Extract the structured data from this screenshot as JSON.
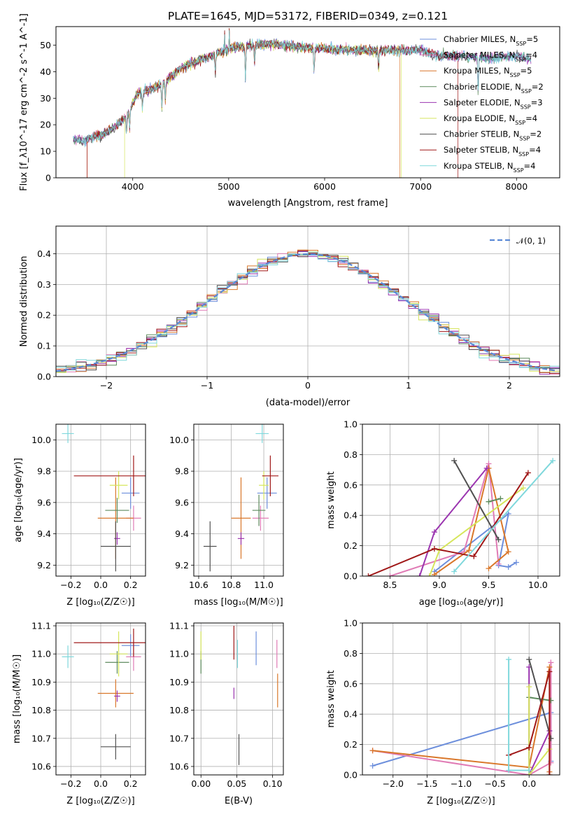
{
  "figure": {
    "title": "PLATE=1645, MJD=53172, FIBERID=0349, z=0.121"
  },
  "models": [
    {
      "name": "Chabrier MILES",
      "nssp": 5,
      "color": "#6d8fdc"
    },
    {
      "name": "Salpeter MILES",
      "nssp": 4,
      "color": "#e07bb5"
    },
    {
      "name": "Kroupa MILES",
      "nssp": 5,
      "color": "#d9772a"
    },
    {
      "name": "Chabrier ELODIE",
      "nssp": 2,
      "color": "#5c8a5c"
    },
    {
      "name": "Salpeter ELODIE",
      "nssp": 3,
      "color": "#9b35b0"
    },
    {
      "name": "Kroupa ELODIE",
      "nssp": 4,
      "color": "#d6e65c"
    },
    {
      "name": "Chabrier STELIB",
      "nssp": 2,
      "color": "#505050"
    },
    {
      "name": "Salpeter STELIB",
      "nssp": 4,
      "color": "#a01818"
    },
    {
      "name": "Kroupa STELIB",
      "nssp": 4,
      "color": "#7fd8dc"
    }
  ],
  "chart_data": [
    {
      "id": "spectrum",
      "type": "line",
      "xlabel": "wavelength [Angstrom, rest frame]",
      "ylabel": "Flux [f_λ10^-17 erg cm^-2 s^-1 A^-1]",
      "xlim": [
        3200,
        8450
      ],
      "ylim": [
        0,
        57
      ],
      "xticks": [
        4000,
        5000,
        6000,
        7000,
        8000
      ],
      "yticks": [
        0,
        10,
        20,
        30,
        40,
        50
      ],
      "legend": "upper right",
      "grid": false,
      "continuum": [
        [
          3380,
          14.5
        ],
        [
          3500,
          14
        ],
        [
          3600,
          15.5
        ],
        [
          3700,
          16.5
        ],
        [
          3800,
          19
        ],
        [
          3880,
          21
        ],
        [
          3950,
          24
        ],
        [
          4050,
          32
        ],
        [
          4150,
          33
        ],
        [
          4300,
          35
        ],
        [
          4450,
          40
        ],
        [
          4600,
          43
        ],
        [
          4750,
          45
        ],
        [
          4900,
          47
        ],
        [
          5050,
          49
        ],
        [
          5250,
          50
        ],
        [
          5500,
          50.5
        ],
        [
          5800,
          49
        ],
        [
          6100,
          48.5
        ],
        [
          6400,
          48
        ],
        [
          6700,
          48
        ],
        [
          7000,
          48
        ],
        [
          7200,
          46
        ],
        [
          7400,
          46
        ],
        [
          7700,
          45
        ],
        [
          8000,
          46
        ],
        [
          8150,
          44.5
        ]
      ],
      "absorption": [
        [
          3934,
          20,
          30
        ],
        [
          3968,
          22,
          30
        ],
        [
          4101,
          30,
          20
        ],
        [
          4304,
          31,
          25
        ],
        [
          4340,
          33,
          20
        ],
        [
          4861,
          38,
          15
        ],
        [
          5175,
          44,
          25
        ],
        [
          5270,
          46,
          15
        ],
        [
          5890,
          40,
          20
        ],
        [
          6563,
          43,
          15
        ],
        [
          7600,
          40,
          30
        ]
      ],
      "emission": [
        [
          4959,
          55,
          6
        ],
        [
          5007,
          57,
          6
        ]
      ],
      "series_cuts": [
        {
          "series": "Kroupa MILES",
          "x_start": 3525,
          "x_end": 6785
        },
        {
          "series": "Salpeter STELIB",
          "x_start": 3525,
          "x_end": 7390
        },
        {
          "series": "Kroupa ELODIE",
          "x_start": 3915,
          "x_end": 6800
        }
      ]
    },
    {
      "id": "residuals",
      "type": "histogram",
      "xlabel": "(data-model)/error",
      "ylabel": "Normed distribution",
      "xlim": [
        -2.5,
        2.5
      ],
      "ylim": [
        0,
        0.49
      ],
      "xticks": [
        -2,
        -1,
        0,
        1,
        2
      ],
      "yticks": [
        0,
        0.1,
        0.2,
        0.3,
        0.4
      ],
      "grid": true,
      "legend": "upper right",
      "reference_curve": {
        "label": "𝒩(0, 1)",
        "color": "#5b8ad6",
        "style": "dashed"
      }
    },
    {
      "id": "age-vs-Z",
      "type": "errorbar",
      "xlabel": "Z [log₁₀(Z/Z☉)]",
      "ylabel": "age  [log₁₀(age/yr)]",
      "xlim": [
        -0.3,
        0.3
      ],
      "ylim": [
        9.13,
        10.1
      ],
      "xticks": [
        -0.2,
        0.0,
        0.2
      ],
      "yticks": [
        9.2,
        9.4,
        9.6,
        9.8,
        10.0
      ],
      "grid": true,
      "points": [
        {
          "model": "Chabrier MILES",
          "x": 0.2,
          "xerr": 0.06,
          "y": 9.66,
          "yerr": 0.1
        },
        {
          "model": "Salpeter MILES",
          "x": 0.22,
          "xerr": 0.05,
          "y": 9.5,
          "yerr": 0.08
        },
        {
          "model": "Kroupa MILES",
          "x": 0.1,
          "xerr": 0.12,
          "y": 9.5,
          "yerr": 0.26
        },
        {
          "model": "Chabrier ELODIE",
          "x": 0.11,
          "xerr": 0.08,
          "y": 9.55,
          "yerr": 0.08
        },
        {
          "model": "Salpeter ELODIE",
          "x": 0.11,
          "xerr": 0.02,
          "y": 9.37,
          "yerr": 0.04
        },
        {
          "model": "Kroupa ELODIE",
          "x": 0.12,
          "xerr": 0.06,
          "y": 9.71,
          "yerr": 0.09
        },
        {
          "model": "Chabrier STELIB",
          "x": 0.1,
          "xerr": 0.1,
          "y": 9.32,
          "yerr": 0.16
        },
        {
          "model": "Salpeter STELIB",
          "x": 0.22,
          "xerr": 0.4,
          "y": 9.77,
          "yerr": 0.13
        },
        {
          "model": "Kroupa STELIB",
          "x": -0.22,
          "xerr": 0.04,
          "y": 10.04,
          "yerr": 0.06
        }
      ]
    },
    {
      "id": "age-vs-mass",
      "type": "errorbar",
      "xlabel": "mass [log₁₀(M/M☉)]",
      "ylabel": "",
      "xlim": [
        10.57,
        11.12
      ],
      "ylim": [
        9.13,
        10.1
      ],
      "xticks": [
        10.6,
        10.8,
        11.0
      ],
      "yticks": [
        9.2,
        9.4,
        9.6,
        9.8,
        10.0
      ],
      "grid": true,
      "points": [
        {
          "model": "Chabrier MILES",
          "x": 11.02,
          "xerr": 0.06,
          "y": 9.66,
          "yerr": 0.1
        },
        {
          "model": "Salpeter MILES",
          "x": 10.98,
          "xerr": 0.05,
          "y": 9.5,
          "yerr": 0.08
        },
        {
          "model": "Kroupa MILES",
          "x": 10.86,
          "xerr": 0.06,
          "y": 9.5,
          "yerr": 0.26
        },
        {
          "model": "Chabrier ELODIE",
          "x": 10.97,
          "xerr": 0.04,
          "y": 9.55,
          "yerr": 0.1
        },
        {
          "model": "Salpeter ELODIE",
          "x": 10.86,
          "xerr": 0.02,
          "y": 9.37,
          "yerr": 0.04
        },
        {
          "model": "Kroupa ELODIE",
          "x": 11.0,
          "xerr": 0.03,
          "y": 9.71,
          "yerr": 0.09
        },
        {
          "model": "Chabrier STELIB",
          "x": 10.67,
          "xerr": 0.04,
          "y": 9.32,
          "yerr": 0.16
        },
        {
          "model": "Salpeter STELIB",
          "x": 11.04,
          "xerr": 0.05,
          "y": 9.77,
          "yerr": 0.13
        },
        {
          "model": "Kroupa STELIB",
          "x": 10.99,
          "xerr": 0.04,
          "y": 10.04,
          "yerr": 0.06
        }
      ]
    },
    {
      "id": "weight-vs-age",
      "type": "line",
      "xlabel": "age  [log₁₀(age/yr)]",
      "ylabel": "mass weight",
      "xlim": [
        8.22,
        10.22
      ],
      "ylim": [
        0,
        1.0
      ],
      "xticks": [
        8.5,
        9.0,
        9.5,
        10.0
      ],
      "yticks": [
        0.0,
        0.2,
        0.4,
        0.6,
        0.8,
        1.0
      ],
      "grid": true,
      "series": [
        {
          "model": "Chabrier MILES",
          "x": [
            8.95,
            9.7,
            9.6,
            9.7,
            9.78
          ],
          "y": [
            0.03,
            0.41,
            0.07,
            0.06,
            0.09
          ]
        },
        {
          "model": "Salpeter MILES",
          "x": [
            8.5,
            9.25,
            9.5,
            9.6
          ],
          "y": [
            0.0,
            0.16,
            0.74,
            0.08
          ]
        },
        {
          "model": "Kroupa MILES",
          "x": [
            8.95,
            9.3,
            9.5,
            9.7,
            9.5
          ],
          "y": [
            0.01,
            0.17,
            0.71,
            0.16,
            0.05
          ]
        },
        {
          "model": "Chabrier ELODIE",
          "x": [
            9.5,
            9.62
          ],
          "y": [
            0.49,
            0.51
          ]
        },
        {
          "model": "Salpeter ELODIE",
          "x": [
            8.8,
            8.95,
            9.48
          ],
          "y": [
            0.0,
            0.29,
            0.71
          ]
        },
        {
          "model": "Kroupa ELODIE",
          "x": [
            8.9,
            9.0,
            9.85
          ],
          "y": [
            0.0,
            0.17,
            0.58
          ]
        },
        {
          "model": "Chabrier STELIB",
          "x": [
            9.6,
            9.15
          ],
          "y": [
            0.24,
            0.76
          ]
        },
        {
          "model": "Salpeter STELIB",
          "x": [
            8.28,
            8.95,
            9.35,
            9.9
          ],
          "y": [
            0.0,
            0.18,
            0.13,
            0.68
          ]
        },
        {
          "model": "Kroupa STELIB",
          "x": [
            9.15,
            10.15
          ],
          "y": [
            0.03,
            0.76
          ]
        }
      ]
    },
    {
      "id": "mass-vs-Z",
      "type": "errorbar",
      "xlabel": "Z [log₁₀(Z/Z☉)]",
      "ylabel": "mass [log₁₀(M/M☉)]",
      "xlim": [
        -0.3,
        0.3
      ],
      "ylim": [
        10.57,
        11.11
      ],
      "xticks": [
        -0.2,
        0.0,
        0.2
      ],
      "yticks": [
        10.6,
        10.7,
        10.8,
        10.9,
        11.0,
        11.1
      ],
      "grid": true,
      "points": [
        {
          "model": "Chabrier MILES",
          "x": 0.2,
          "xerr": 0.06,
          "y": 11.03,
          "yerr": 0.04
        },
        {
          "model": "Salpeter MILES",
          "x": 0.22,
          "xerr": 0.05,
          "y": 10.99,
          "yerr": 0.05
        },
        {
          "model": "Kroupa MILES",
          "x": 0.1,
          "xerr": 0.12,
          "y": 10.86,
          "yerr": 0.05
        },
        {
          "model": "Chabrier ELODIE",
          "x": 0.11,
          "xerr": 0.08,
          "y": 10.97,
          "yerr": 0.04
        },
        {
          "model": "Salpeter ELODIE",
          "x": 0.11,
          "xerr": 0.02,
          "y": 10.85,
          "yerr": 0.02
        },
        {
          "model": "Kroupa ELODIE",
          "x": 0.12,
          "xerr": 0.06,
          "y": 11.0,
          "yerr": 0.08
        },
        {
          "model": "Chabrier STELIB",
          "x": 0.1,
          "xerr": 0.1,
          "y": 10.67,
          "yerr": 0.045
        },
        {
          "model": "Salpeter STELIB",
          "x": 0.22,
          "xerr": 0.4,
          "y": 11.04,
          "yerr": 0.05
        },
        {
          "model": "Kroupa STELIB",
          "x": -0.22,
          "xerr": 0.04,
          "y": 10.99,
          "yerr": 0.04
        }
      ]
    },
    {
      "id": "mass-vs-ebv",
      "type": "errorbar",
      "xlabel": "E(B-V)",
      "ylabel": "",
      "xlim": [
        -0.01,
        0.115
      ],
      "ylim": [
        10.57,
        11.11
      ],
      "xticks": [
        0.0,
        0.05,
        0.1
      ],
      "yticks": [
        10.6,
        10.7,
        10.8,
        10.9,
        11.0,
        11.1
      ],
      "grid": true,
      "points": [
        {
          "model": "Chabrier MILES",
          "x": 0.077,
          "xerr": 0,
          "y": 11.02,
          "yerr": 0.06
        },
        {
          "model": "Salpeter MILES",
          "x": 0.106,
          "xerr": 0,
          "y": 11.0,
          "yerr": 0.05
        },
        {
          "model": "Kroupa MILES",
          "x": 0.107,
          "xerr": 0,
          "y": 10.87,
          "yerr": 0.06
        },
        {
          "model": "Chabrier ELODIE",
          "x": 0.0,
          "xerr": 0,
          "y": 10.97,
          "yerr": 0.04
        },
        {
          "model": "Salpeter ELODIE",
          "x": 0.046,
          "xerr": 0,
          "y": 10.86,
          "yerr": 0.02
        },
        {
          "model": "Kroupa ELODIE",
          "x": 0.0,
          "xerr": 0,
          "y": 11.03,
          "yerr": 0.05
        },
        {
          "model": "Chabrier STELIB",
          "x": 0.053,
          "xerr": 0,
          "y": 10.66,
          "yerr": 0.055
        },
        {
          "model": "Salpeter STELIB",
          "x": 0.046,
          "xerr": 0,
          "y": 11.04,
          "yerr": 0.06
        },
        {
          "model": "Kroupa STELIB",
          "x": 0.051,
          "xerr": 0,
          "y": 11.0,
          "yerr": 0.05
        }
      ]
    },
    {
      "id": "weight-vs-Z",
      "type": "line",
      "xlabel": "Z [log₁₀(Z/Z☉)]",
      "ylabel": "mass weight",
      "xlim": [
        -2.45,
        0.45
      ],
      "ylim": [
        0,
        1.0
      ],
      "xticks": [
        -2.0,
        -1.5,
        -1.0,
        -0.5,
        0.0
      ],
      "yticks": [
        0.0,
        0.2,
        0.4,
        0.6,
        0.8,
        1.0
      ],
      "grid": true,
      "series": [
        {
          "model": "Chabrier MILES",
          "x": [
            -2.3,
            0.32,
            0.32
          ],
          "y": [
            0.06,
            0.41,
            0.09
          ]
        },
        {
          "model": "Salpeter MILES",
          "x": [
            -2.3,
            0.0,
            0.32,
            0.32
          ],
          "y": [
            0.16,
            0.0,
            0.08,
            0.74
          ]
        },
        {
          "model": "Kroupa MILES",
          "x": [
            -2.3,
            0.0,
            0.3,
            0.3
          ],
          "y": [
            0.16,
            0.05,
            0.71,
            0.02
          ]
        },
        {
          "model": "Chabrier ELODIE",
          "x": [
            0.0,
            0.32
          ],
          "y": [
            0.51,
            0.49
          ]
        },
        {
          "model": "Salpeter ELODIE",
          "x": [
            0.0,
            0.0,
            0.3,
            0.3
          ],
          "y": [
            0.71,
            0.0,
            0.29,
            0.0
          ]
        },
        {
          "model": "Kroupa ELODIE",
          "x": [
            0.0,
            0.0,
            0.3,
            0.3
          ],
          "y": [
            0.58,
            0.0,
            0.17,
            0.0
          ]
        },
        {
          "model": "Chabrier STELIB",
          "x": [
            0.0,
            0.32
          ],
          "y": [
            0.76,
            0.24
          ]
        },
        {
          "model": "Salpeter STELIB",
          "x": [
            -0.3,
            0.0,
            0.3,
            0.3
          ],
          "y": [
            0.13,
            0.18,
            0.68,
            0.0
          ]
        },
        {
          "model": "Kroupa STELIB",
          "x": [
            -0.3,
            -0.3,
            0.0
          ],
          "y": [
            0.76,
            0.03,
            0.03
          ]
        }
      ]
    }
  ]
}
